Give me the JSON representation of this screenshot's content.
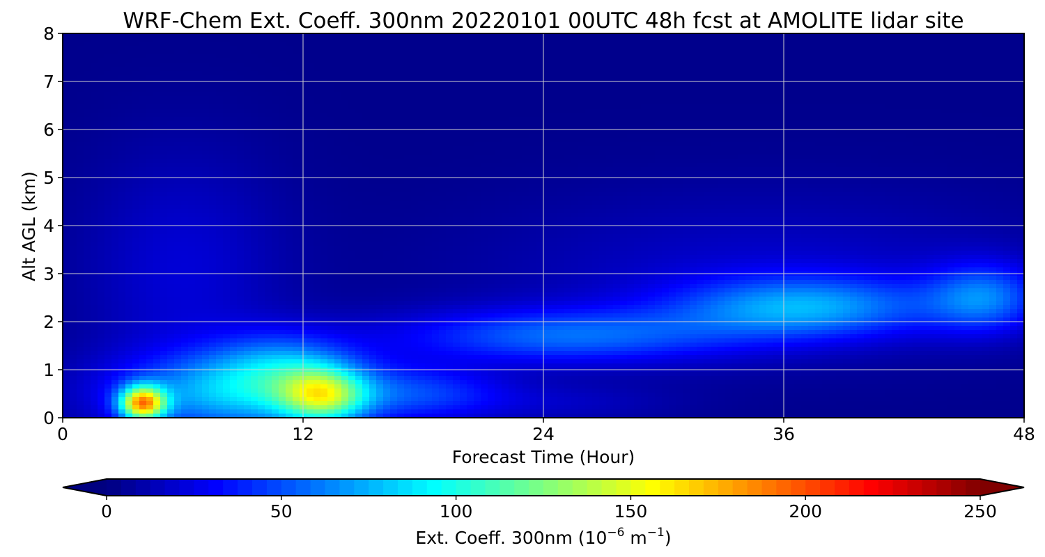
{
  "chart_data": {
    "type": "heatmap",
    "title": "WRF-Chem Ext. Coeff. 300nm  20220101 00UTC 48h fcst at AMOLITE lidar site",
    "xlabel": "Forecast Time (Hour)",
    "ylabel": "Alt AGL (km)",
    "xlim": [
      0,
      48
    ],
    "ylim": [
      0,
      8
    ],
    "x_ticks": [
      "0",
      "12",
      "24",
      "36",
      "48"
    ],
    "y_ticks": [
      "0",
      "1",
      "2",
      "3",
      "4",
      "5",
      "6",
      "7",
      "8"
    ],
    "grid": true,
    "colormap": "jet",
    "colorbar": {
      "label_main": "Ext. Coeff. 300nm  (10",
      "label_exp1": "−6",
      "label_mid": " m",
      "label_exp2": "−1",
      "label_end": ")",
      "range": [
        0,
        250
      ],
      "extend": "both",
      "ticks": [
        "0",
        "50",
        "100",
        "150",
        "200",
        "250"
      ]
    },
    "features": [
      {
        "x": 4,
        "y": 0.3,
        "sx": 0.8,
        "sy": 0.25,
        "value": 150
      },
      {
        "x": 13,
        "y": 0.45,
        "sx": 1.5,
        "sy": 0.4,
        "value": 90
      },
      {
        "x": 9,
        "y": 0.5,
        "sx": 4.5,
        "sy": 0.6,
        "value": 70
      },
      {
        "x": 11,
        "y": 1.1,
        "sx": 2.5,
        "sy": 0.5,
        "value": 40
      },
      {
        "x": 18,
        "y": 0.5,
        "sx": 3.0,
        "sy": 0.4,
        "value": 35
      },
      {
        "x": 25,
        "y": 1.7,
        "sx": 6.0,
        "sy": 0.4,
        "value": 50
      },
      {
        "x": 37,
        "y": 2.3,
        "sx": 4.5,
        "sy": 0.45,
        "value": 60
      },
      {
        "x": 46,
        "y": 2.5,
        "sx": 2.0,
        "sy": 0.5,
        "value": 50
      },
      {
        "x": 6,
        "y": 3.0,
        "sx": 3.5,
        "sy": 1.8,
        "value": 18
      },
      {
        "x": 35,
        "y": 3.0,
        "sx": 10.0,
        "sy": 1.2,
        "value": 15
      },
      {
        "x": 25,
        "y": 0.3,
        "sx": 4.0,
        "sy": 0.3,
        "value": 12
      }
    ]
  }
}
